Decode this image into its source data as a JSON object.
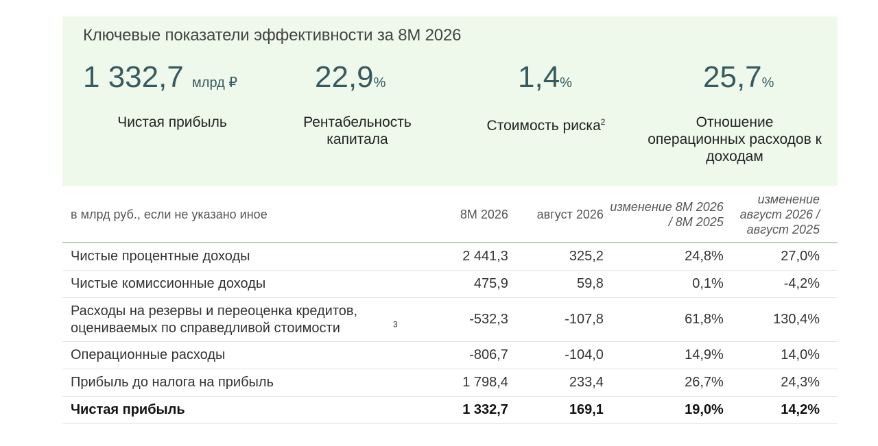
{
  "kpi": {
    "title": "Ключевые показатели эффективности за 8М 2026",
    "items": [
      {
        "value": "1 332,7",
        "unit": "млрд ₽",
        "label": "Чистая прибыль",
        "sup": ""
      },
      {
        "value": "22,9",
        "unit": "%",
        "label": "Рентабельность капитала",
        "sup": ""
      },
      {
        "value": "1,4",
        "unit": "%",
        "label": "Стоимость риска",
        "sup": "2"
      },
      {
        "value": "25,7",
        "unit": "%",
        "label": "Отношение операционных расходов к доходам",
        "sup": ""
      }
    ]
  },
  "table": {
    "headers": [
      "в млрд руб., если не указано иное",
      "8М 2026",
      "август 2026",
      "изменение 8М 2026 / 8М 2025",
      "изменение август 2026 / август 2025"
    ],
    "rows": [
      {
        "label": "Чистые процентные доходы",
        "sup": "",
        "values": [
          "2 441,3",
          "325,2",
          "24,8%",
          "27,0%"
        ]
      },
      {
        "label": "Чистые комиссионные доходы",
        "sup": "",
        "values": [
          "475,9",
          "59,8",
          "0,1%",
          "-4,2%"
        ]
      },
      {
        "label": "Расходы на резервы и переоценка кредитов, оцениваемых по справедливой стоимости",
        "sup": "3",
        "values": [
          "-532,3",
          "-107,8",
          "61,8%",
          "130,4%"
        ]
      },
      {
        "label": "Операционные расходы",
        "sup": "",
        "values": [
          "-806,7",
          "-104,0",
          "14,9%",
          "14,0%"
        ]
      },
      {
        "label": "Прибыль до налога на прибыль",
        "sup": "",
        "values": [
          "1 798,4",
          "233,4",
          "26,7%",
          "24,3%"
        ]
      },
      {
        "label": "Чистая прибыль",
        "sup": "",
        "values": [
          "1 332,7",
          "169,1",
          "19,0%",
          "14,2%"
        ]
      }
    ]
  },
  "colors": {
    "panel_bg": "#eef9ec",
    "kpi_value": "#365a5f",
    "header_rule": "#6da36d"
  }
}
